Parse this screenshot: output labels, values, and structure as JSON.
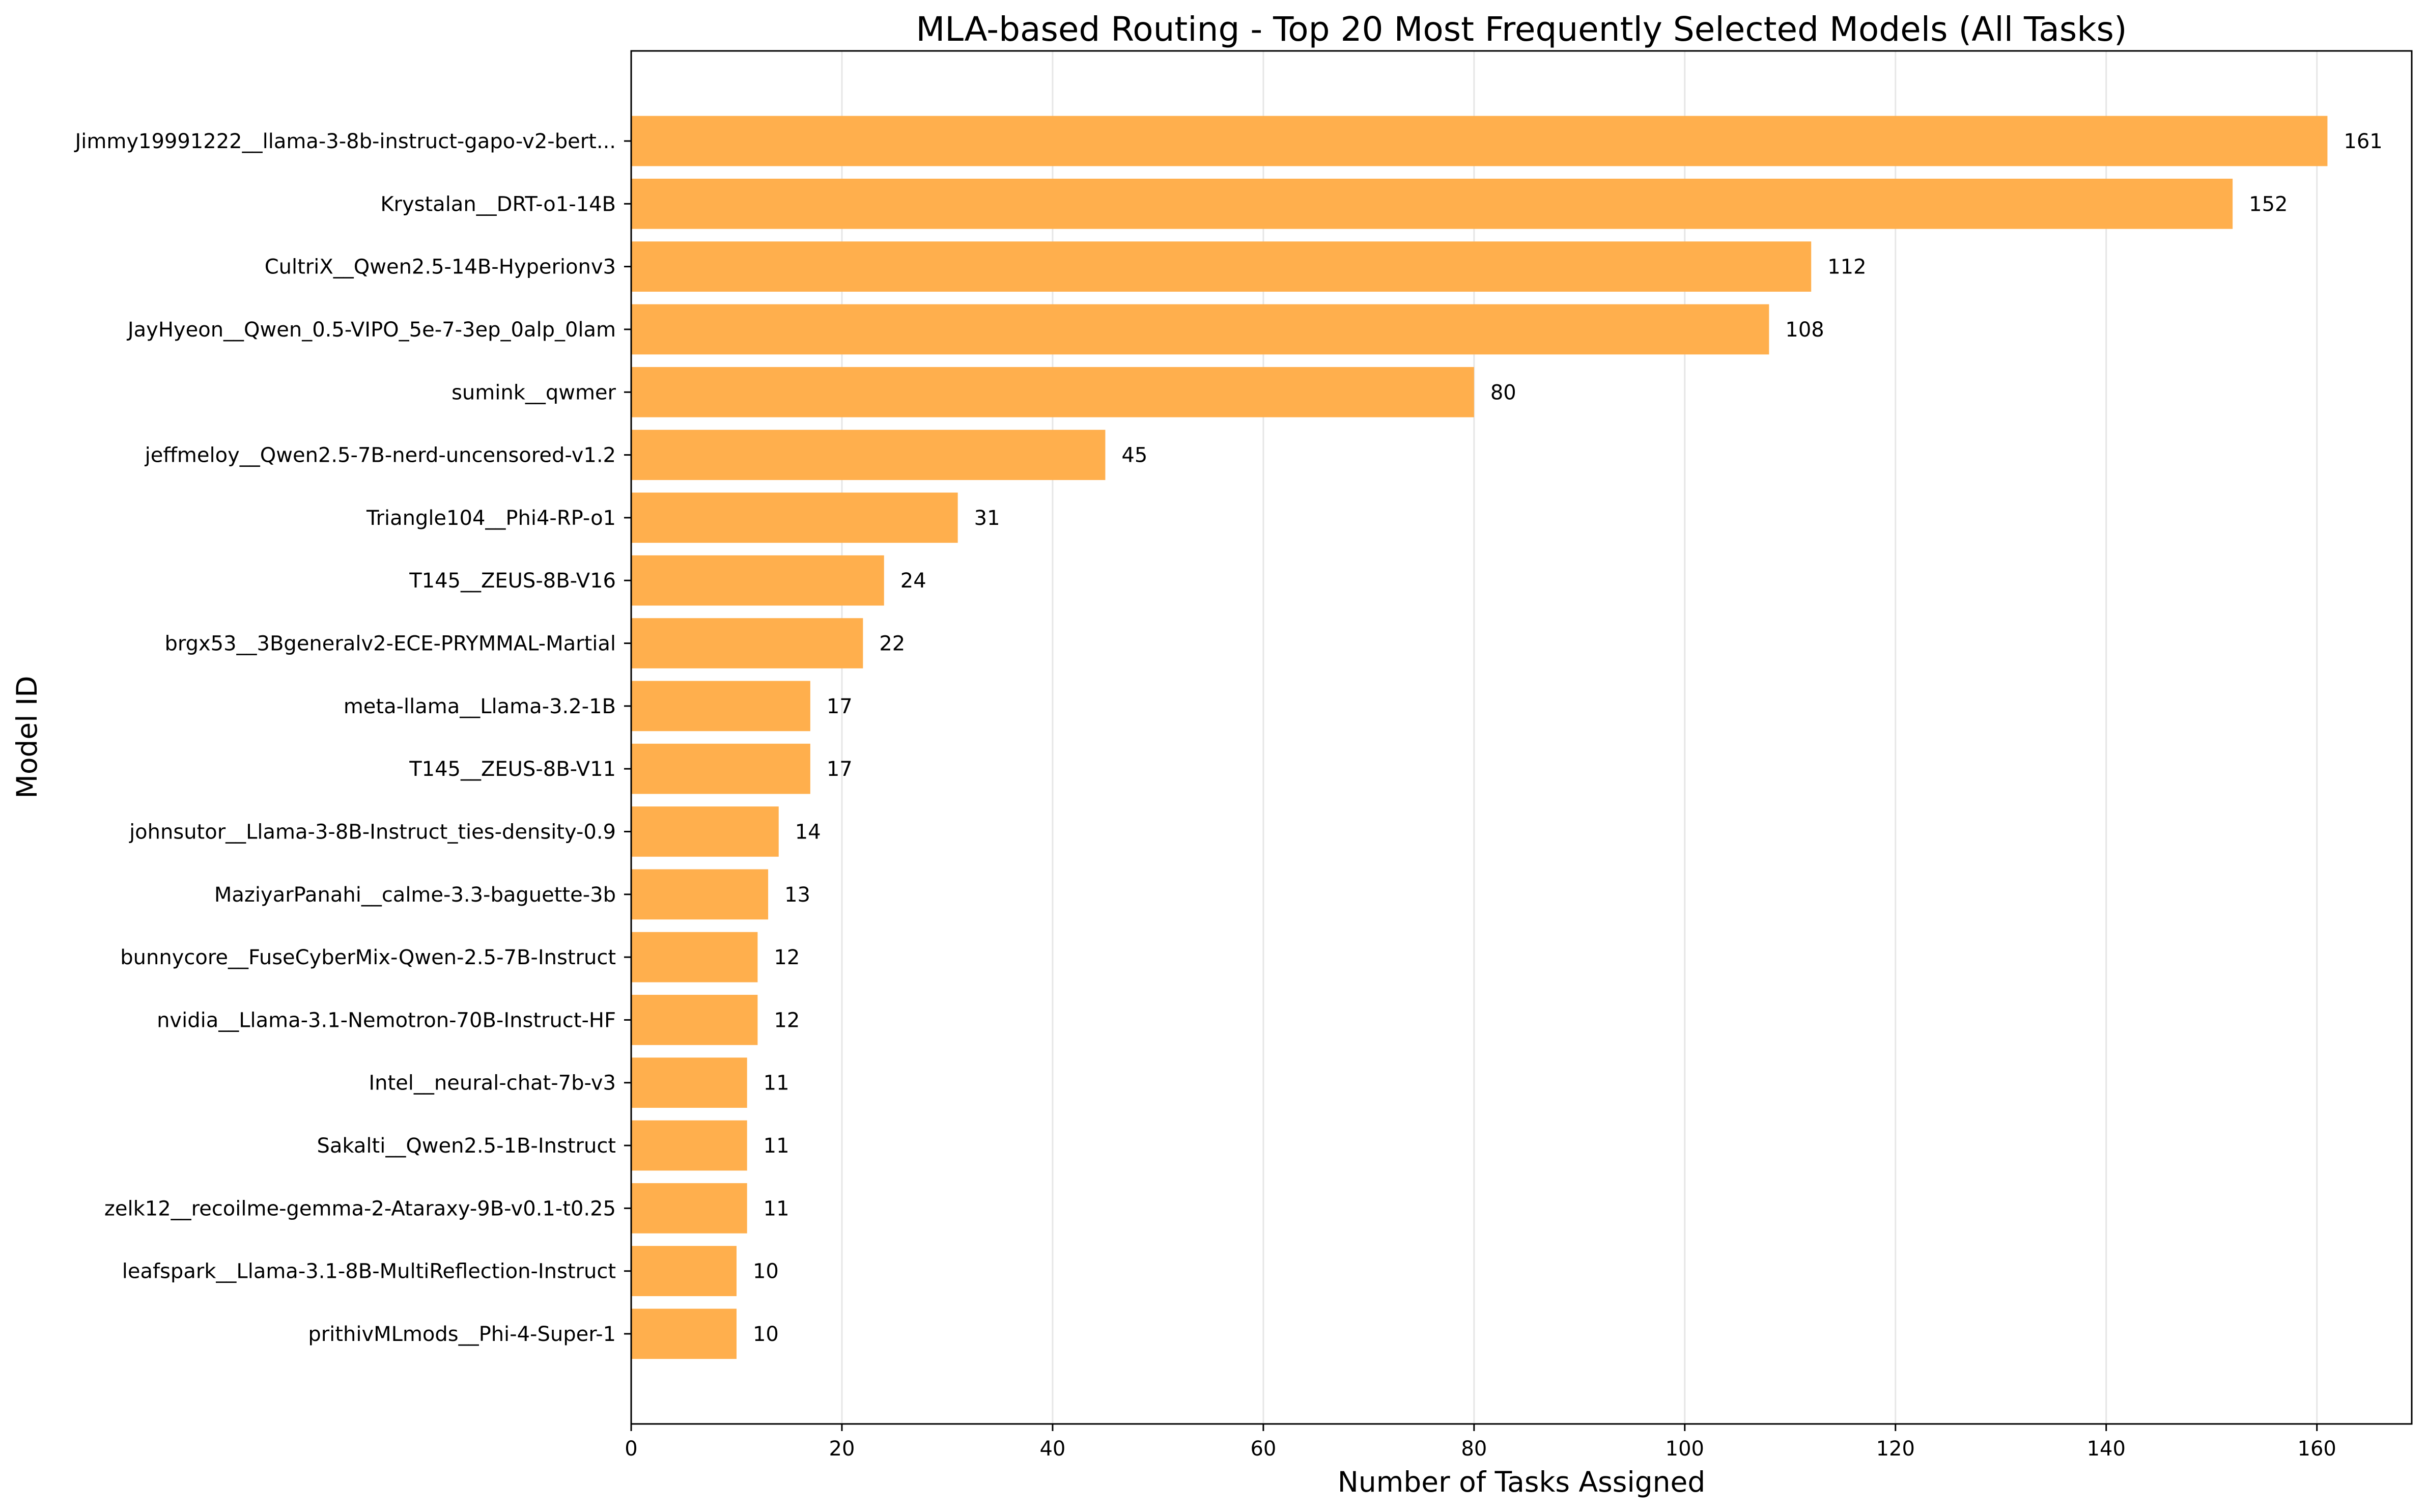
{
  "chart_data": {
    "type": "bar",
    "orientation": "horizontal",
    "title": "MLA-based Routing - Top 20 Most Frequently Selected Models (All Tasks)",
    "xlabel": "Number of Tasks Assigned",
    "ylabel": "Model ID",
    "xlim": [
      0,
      169
    ],
    "xticks": [
      0,
      20,
      40,
      60,
      80,
      100,
      120,
      140,
      160
    ],
    "grid": "vertical",
    "bar_color": "#FFAF4D",
    "categories": [
      "Jimmy19991222__llama-3-8b-instruct-gapo-v2-bert...",
      "Krystalan__DRT-o1-14B",
      "CultriX__Qwen2.5-14B-Hyperionv3",
      "JayHyeon__Qwen_0.5-VIPO_5e-7-3ep_0alp_0lam",
      "sumink__qwmer",
      "jeffmeloy__Qwen2.5-7B-nerd-uncensored-v1.2",
      "Triangle104__Phi4-RP-o1",
      "T145__ZEUS-8B-V16",
      "brgx53__3Bgeneralv2-ECE-PRYMMAL-Martial",
      "meta-llama__Llama-3.2-1B",
      "T145__ZEUS-8B-V11",
      "johnsutor__Llama-3-8B-Instruct_ties-density-0.9",
      "MaziyarPanahi__calme-3.3-baguette-3b",
      "bunnycore__FuseCyberMix-Qwen-2.5-7B-Instruct",
      "nvidia__Llama-3.1-Nemotron-70B-Instruct-HF",
      "Intel__neural-chat-7b-v3",
      "Sakalti__Qwen2.5-1B-Instruct",
      "zelk12__recoilme-gemma-2-Ataraxy-9B-v0.1-t0.25",
      "leafspark__Llama-3.1-8B-MultiReflection-Instruct",
      "prithivMLmods__Phi-4-Super-1"
    ],
    "values": [
      161,
      152,
      112,
      108,
      80,
      45,
      31,
      24,
      22,
      17,
      17,
      14,
      13,
      12,
      12,
      11,
      11,
      11,
      10,
      10
    ]
  }
}
